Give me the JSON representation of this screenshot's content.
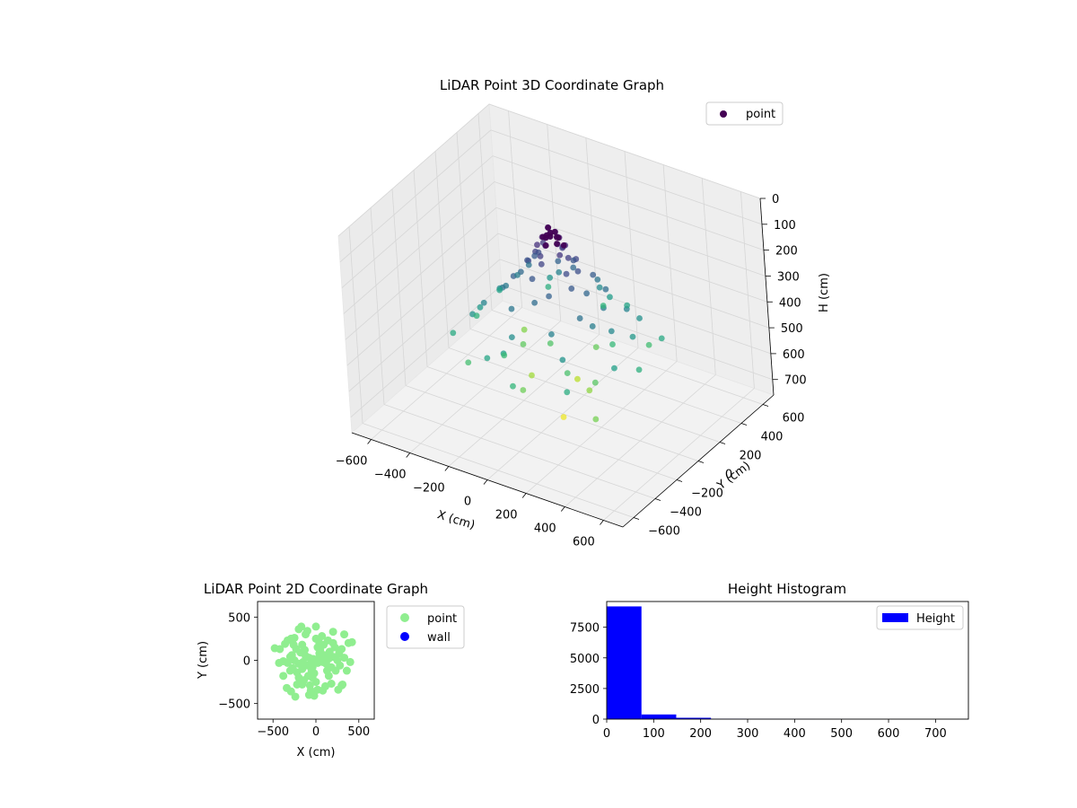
{
  "chart_data": [
    {
      "type": "scatter3d",
      "title": "LiDAR Point 3D Coordinate Graph",
      "xlabel": "X (cm)",
      "ylabel": "Y (cm)",
      "zlabel": "H (cm)",
      "xticks": [
        "−600",
        "−400",
        "−200",
        "0",
        "200",
        "400",
        "600"
      ],
      "yticks": [
        "−600",
        "−400",
        "−200",
        "0",
        "200",
        "400",
        "600"
      ],
      "zticks": [
        "0",
        "100",
        "200",
        "300",
        "400",
        "500",
        "600",
        "700"
      ],
      "xlim": [
        -700,
        700
      ],
      "ylim": [
        -700,
        700
      ],
      "zlim": [
        0,
        760
      ],
      "z_inverted": true,
      "grid": true,
      "colormap": "viridis",
      "legend": {
        "label": "point",
        "placement": "top-right"
      },
      "series": [
        {
          "name": "point",
          "points": [
            [
              0,
              0,
              60
            ],
            [
              20,
              10,
              55
            ],
            [
              -20,
              15,
              50
            ],
            [
              10,
              -20,
              65
            ],
            [
              -15,
              -10,
              70
            ],
            [
              30,
              25,
              80
            ],
            [
              -30,
              -25,
              75
            ],
            [
              40,
              -10,
              90
            ],
            [
              -40,
              20,
              95
            ],
            [
              15,
              35,
              85
            ],
            [
              -10,
              -35,
              100
            ],
            [
              50,
              40,
              110
            ],
            [
              -50,
              -40,
              105
            ],
            [
              60,
              -30,
              120
            ],
            [
              -60,
              30,
              125
            ],
            [
              25,
              60,
              130
            ],
            [
              -25,
              -60,
              135
            ],
            [
              80,
              10,
              140
            ],
            [
              -80,
              -10,
              150
            ],
            [
              10,
              80,
              145
            ],
            [
              -10,
              -80,
              155
            ],
            [
              90,
              60,
              160
            ],
            [
              -90,
              -60,
              170
            ],
            [
              100,
              -50,
              175
            ],
            [
              -100,
              50,
              180
            ],
            [
              120,
              20,
              185
            ],
            [
              -120,
              -20,
              190
            ],
            [
              40,
              120,
              200
            ],
            [
              -40,
              -120,
              205
            ],
            [
              140,
              -80,
              210
            ],
            [
              -140,
              80,
              215
            ],
            [
              150,
              100,
              220
            ],
            [
              -150,
              -100,
              230
            ],
            [
              60,
              -150,
              235
            ],
            [
              -60,
              150,
              240
            ],
            [
              170,
              0,
              250
            ],
            [
              -170,
              0,
              255
            ],
            [
              0,
              180,
              260
            ],
            [
              0,
              -180,
              265
            ],
            [
              200,
              120,
              270
            ],
            [
              -200,
              -120,
              280
            ],
            [
              210,
              -140,
              285
            ],
            [
              -210,
              140,
              290
            ],
            [
              100,
              220,
              295
            ],
            [
              -100,
              -220,
              300
            ],
            [
              230,
              40,
              305
            ],
            [
              -230,
              -40,
              310
            ],
            [
              250,
              -100,
              320
            ],
            [
              -250,
              100,
              325
            ],
            [
              120,
              -250,
              330
            ],
            [
              -120,
              250,
              335
            ],
            [
              280,
              160,
              340
            ],
            [
              -280,
              -160,
              345
            ],
            [
              300,
              -20,
              355
            ],
            [
              -300,
              20,
              360
            ],
            [
              60,
              300,
              365
            ],
            [
              -60,
              -300,
              370
            ],
            [
              320,
              200,
              380
            ],
            [
              -320,
              -200,
              385
            ],
            [
              200,
              -300,
              390
            ],
            [
              -200,
              300,
              395
            ],
            [
              350,
              80,
              400
            ],
            [
              -350,
              -80,
              410
            ],
            [
              80,
              350,
              415
            ],
            [
              -80,
              -350,
              420
            ],
            [
              380,
              -150,
              430
            ],
            [
              -380,
              150,
              435
            ],
            [
              150,
              380,
              440
            ],
            [
              -150,
              -380,
              445
            ],
            [
              400,
              250,
              455
            ],
            [
              -400,
              -250,
              460
            ],
            [
              260,
              -380,
              470
            ],
            [
              -260,
              380,
              475
            ],
            [
              420,
              0,
              480
            ],
            [
              -420,
              0,
              490
            ],
            [
              0,
              420,
              495
            ],
            [
              0,
              -420,
              500
            ],
            [
              180,
              180,
              510
            ],
            [
              -180,
              -180,
              515
            ],
            [
              300,
              300,
              525
            ],
            [
              -300,
              -300,
              530
            ],
            [
              100,
              -100,
              540
            ],
            [
              -100,
              100,
              550
            ],
            [
              220,
              -60,
              560
            ],
            [
              -220,
              60,
              570
            ],
            [
              50,
              250,
              580
            ],
            [
              -50,
              -250,
              590
            ],
            [
              330,
              -260,
              600
            ],
            [
              -330,
              260,
              615
            ],
            [
              150,
              0,
              630
            ],
            [
              -150,
              0,
              650
            ],
            [
              0,
              150,
              680
            ],
            [
              40,
              -60,
              740
            ]
          ]
        }
      ]
    },
    {
      "type": "scatter",
      "title": "LiDAR Point 2D Coordinate Graph",
      "xlabel": "X (cm)",
      "ylabel": "Y (cm)",
      "xticks": [
        "−500",
        "0",
        "500"
      ],
      "yticks": [
        "−500",
        "0",
        "500"
      ],
      "xlim": [
        -680,
        680
      ],
      "ylim": [
        -680,
        680
      ],
      "legend": {
        "placement": "outside-right"
      },
      "series": [
        {
          "name": "point",
          "color": "#90ee90",
          "points": [
            [
              0,
              0
            ],
            [
              30,
              20
            ],
            [
              -30,
              15
            ],
            [
              20,
              -30
            ],
            [
              -25,
              -20
            ],
            [
              60,
              40
            ],
            [
              -60,
              -40
            ],
            [
              80,
              -20
            ],
            [
              -80,
              30
            ],
            [
              40,
              80
            ],
            [
              -40,
              -80
            ],
            [
              100,
              60
            ],
            [
              -100,
              -60
            ],
            [
              120,
              -40
            ],
            [
              -120,
              50
            ],
            [
              50,
              120
            ],
            [
              -50,
              -120
            ],
            [
              150,
              20
            ],
            [
              -150,
              -20
            ],
            [
              20,
              150
            ],
            [
              -20,
              -150
            ],
            [
              160,
              100
            ],
            [
              -160,
              -100
            ],
            [
              180,
              -80
            ],
            [
              -180,
              90
            ],
            [
              90,
              180
            ],
            [
              -90,
              -180
            ],
            [
              200,
              40
            ],
            [
              -200,
              -40
            ],
            [
              40,
              200
            ],
            [
              -40,
              -200
            ],
            [
              220,
              150
            ],
            [
              -220,
              -140
            ],
            [
              230,
              -120
            ],
            [
              -230,
              130
            ],
            [
              140,
              230
            ],
            [
              -140,
              -230
            ],
            [
              250,
              0
            ],
            [
              -250,
              0
            ],
            [
              0,
              250
            ],
            [
              0,
              -250
            ],
            [
              270,
              80
            ],
            [
              -270,
              -90
            ],
            [
              280,
              -60
            ],
            [
              -280,
              60
            ],
            [
              70,
              280
            ],
            [
              -70,
              -290
            ],
            [
              300,
              130
            ],
            [
              -300,
              -120
            ],
            [
              110,
              -300
            ],
            [
              -120,
              300
            ],
            [
              330,
              30
            ],
            [
              -330,
              -30
            ],
            [
              20,
              -340
            ],
            [
              -200,
              -200
            ],
            [
              200,
              200
            ],
            [
              150,
              -180
            ],
            [
              -160,
              180
            ],
            [
              -130,
              120
            ],
            [
              130,
              -120
            ],
            [
              -420,
              130
            ],
            [
              -360,
              190
            ],
            [
              -330,
              230
            ],
            [
              -290,
              250
            ],
            [
              -200,
              360
            ],
            [
              -170,
              390
            ],
            [
              380,
              200
            ],
            [
              420,
              210
            ],
            [
              -480,
              140
            ],
            [
              -340,
              -320
            ],
            [
              -290,
              -360
            ],
            [
              -80,
              -400
            ],
            [
              -20,
              -410
            ],
            [
              300,
              -290
            ],
            [
              310,
              -280
            ],
            [
              -430,
              -30
            ],
            [
              -380,
              -10
            ],
            [
              -300,
              40
            ],
            [
              -260,
              180
            ],
            [
              -100,
              340
            ],
            [
              0,
              390
            ],
            [
              200,
              330
            ],
            [
              -240,
              -420
            ],
            [
              180,
              -270
            ],
            [
              -160,
              -280
            ],
            [
              -60,
              -350
            ],
            [
              80,
              -350
            ],
            [
              260,
              -340
            ],
            [
              360,
              -120
            ],
            [
              400,
              -20
            ],
            [
              -380,
              -180
            ],
            [
              330,
              300
            ],
            [
              -250,
              260
            ],
            [
              -220,
              -280
            ]
          ]
        },
        {
          "name": "wall",
          "color": "#0000ff",
          "points": []
        }
      ]
    },
    {
      "type": "histogram",
      "title": "Height Histogram",
      "legend": {
        "label": "Height",
        "placement": "top-right"
      },
      "color": "#0000ff",
      "xlim": [
        0,
        770
      ],
      "ylim": [
        0,
        9600
      ],
      "xticks": [
        "0",
        "100",
        "200",
        "300",
        "400",
        "500",
        "600",
        "700"
      ],
      "yticks": [
        "0",
        "2500",
        "5000",
        "7500"
      ],
      "bins": [
        {
          "x0": 0,
          "x1": 74,
          "count": 9200
        },
        {
          "x0": 74,
          "x1": 148,
          "count": 380
        },
        {
          "x0": 148,
          "x1": 222,
          "count": 110
        },
        {
          "x0": 222,
          "x1": 296,
          "count": 30
        },
        {
          "x0": 296,
          "x1": 370,
          "count": 15
        },
        {
          "x0": 370,
          "x1": 444,
          "count": 10
        },
        {
          "x0": 444,
          "x1": 518,
          "count": 6
        },
        {
          "x0": 518,
          "x1": 592,
          "count": 4
        },
        {
          "x0": 592,
          "x1": 666,
          "count": 3
        },
        {
          "x0": 666,
          "x1": 740,
          "count": 2
        }
      ]
    }
  ]
}
